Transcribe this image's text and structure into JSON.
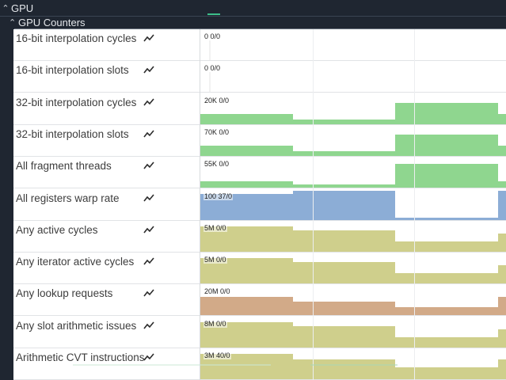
{
  "section": {
    "title": "GPU"
  },
  "subsection": {
    "title": "GPU Counters"
  },
  "colors": {
    "green": "#8fd68f",
    "blue": "#8cadd6",
    "olive": "#cfcf8c",
    "tan": "#d2aa88"
  },
  "icons": {
    "expand": "caret-up-icon",
    "trend": "trend-line-icon"
  },
  "rows": [
    {
      "name": "16-bit interpolation cycles",
      "value": "0 0/0",
      "color": "",
      "levels": [
        0,
        0,
        0,
        0
      ]
    },
    {
      "name": "16-bit interpolation slots",
      "value": "0 0/0",
      "color": "",
      "levels": [
        0,
        0,
        0,
        0
      ]
    },
    {
      "name": "32-bit interpolation cycles",
      "value": "20K 0/0",
      "color": "green",
      "levels": [
        0.35,
        0.15,
        0.7,
        0.35
      ]
    },
    {
      "name": "32-bit interpolation slots",
      "value": "70K 0/0",
      "color": "green",
      "levels": [
        0.35,
        0.15,
        0.7,
        0.35
      ]
    },
    {
      "name": "All fragment threads",
      "value": "55K 0/0",
      "color": "green",
      "levels": [
        0.2,
        0.1,
        0.8,
        0.2
      ]
    },
    {
      "name": "All registers warp rate",
      "value": "100 37/0",
      "color": "blue",
      "levels": [
        0.87,
        0.97,
        0.07,
        0.97
      ]
    },
    {
      "name": "Any active cycles",
      "value": "5M 0/0",
      "color": "olive",
      "levels": [
        0.85,
        0.7,
        0.35,
        0.6
      ]
    },
    {
      "name": "Any iterator active cycles",
      "value": "5M 0/0",
      "color": "olive",
      "levels": [
        0.85,
        0.7,
        0.35,
        0.6
      ]
    },
    {
      "name": "Any lookup requests",
      "value": "20M 0/0",
      "color": "tan",
      "levels": [
        0.6,
        0.45,
        0.25,
        0.6
      ]
    },
    {
      "name": "Any slot arithmetic issues",
      "value": "8M 0/0",
      "color": "olive",
      "levels": [
        0.85,
        0.7,
        0.35,
        0.6
      ]
    },
    {
      "name": "Arithmetic CVT instructions",
      "value": "3M 40/0",
      "color": "olive",
      "levels": [
        0.85,
        0.65,
        0.4,
        0.65
      ]
    }
  ]
}
